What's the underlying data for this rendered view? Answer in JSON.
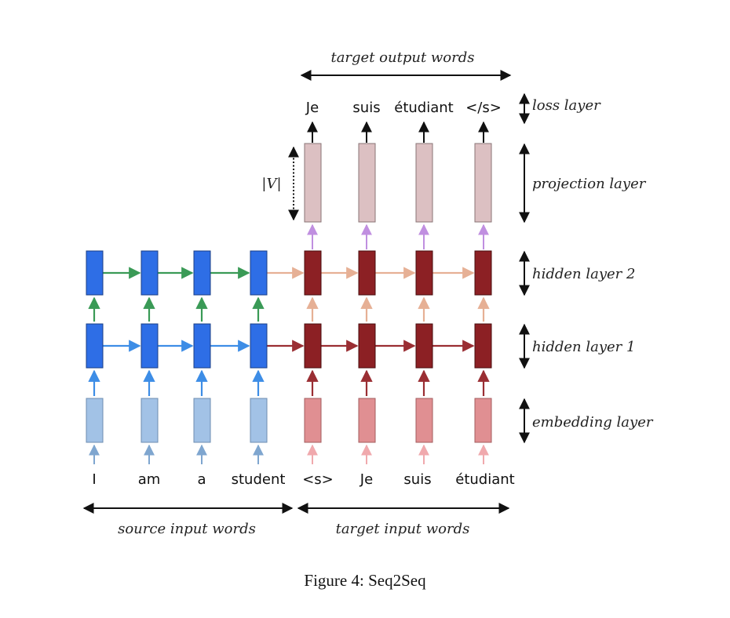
{
  "labels": {
    "target_output_words": "target output words",
    "loss_layer": "loss layer",
    "projection_layer": "projection layer",
    "hidden_layer_2": "hidden layer 2",
    "hidden_layer_1": "hidden layer 1",
    "embedding_layer": "embedding layer",
    "source_input_words": "source input words",
    "target_input_words": "target input words",
    "vocab_size": "|V|"
  },
  "source_words": [
    "I",
    "am",
    "a",
    "student"
  ],
  "target_input": [
    "<s>",
    "Je",
    "suis",
    "étudiant"
  ],
  "target_output": [
    "Je",
    "suis",
    "étudiant",
    "</s>"
  ],
  "caption": "Figure 4: Seq2Seq",
  "colors": {
    "encoder_embedding": "#a2c2e6",
    "encoder_hidden": "#2e6ee6",
    "decoder_embedding": "#e08f92",
    "decoder_hidden": "#8c2024",
    "projection": "#dcc0c2",
    "arrow_input_source": "#7fa6cf",
    "arrow_input_target": "#f0a9ad",
    "arrow_encoder_h1": "#3d8de6",
    "arrow_encoder_h2": "#3a9a56",
    "arrow_decoder_h1": "#9a2e33",
    "arrow_decoder_h2": "#e6b095",
    "arrow_projection": "#c08fe0",
    "arrow_black": "#111111"
  }
}
